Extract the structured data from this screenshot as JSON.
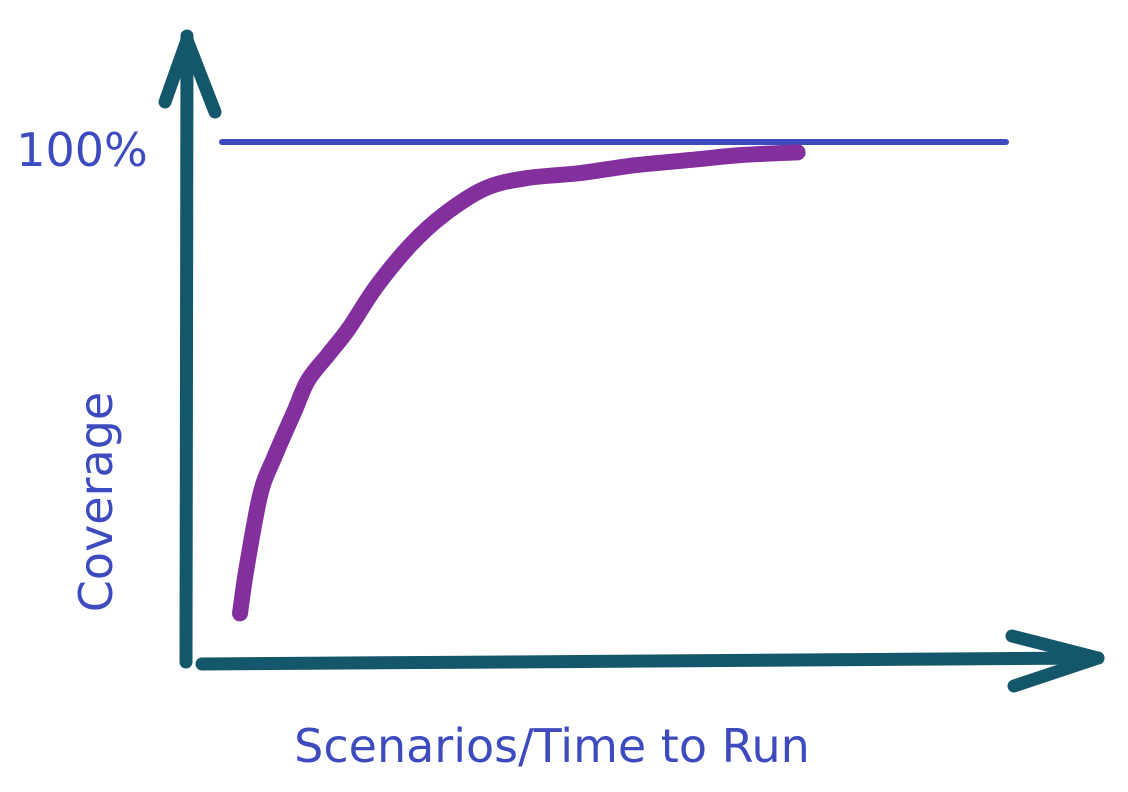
{
  "chart_data": {
    "type": "line",
    "title": "",
    "xlabel": "Scenarios/Time to Run",
    "ylabel": "Coverage",
    "ylim": [
      0,
      100
    ],
    "xlim": [
      0,
      100
    ],
    "y_tick_labels": [
      "100%"
    ],
    "grid": false,
    "reference_line": {
      "label": "100%",
      "value": 100
    },
    "series": [
      {
        "x": [
          0,
          1,
          3,
          5,
          8,
          10,
          13,
          16,
          20,
          25,
          30,
          36,
          42,
          50,
          58,
          66,
          74,
          82
        ],
        "y": [
          9,
          18,
          32,
          39,
          48,
          54,
          59,
          64,
          72,
          80,
          86,
          91,
          93,
          94,
          95.5,
          96.5,
          97.5,
          98
        ]
      }
    ]
  },
  "colors": {
    "axis": "#14576b",
    "label": "#3d4bbf",
    "reference_line": "#3d4bbf",
    "curve": "#83309e"
  }
}
